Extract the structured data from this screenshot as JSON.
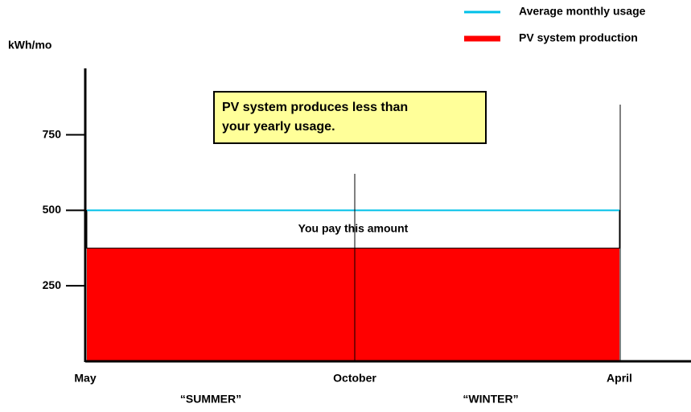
{
  "chart_data": {
    "type": "area",
    "y_label": "kWh/mo",
    "categories": [
      "May",
      "October",
      "April"
    ],
    "seasons": [
      "“SUMMER”",
      "“WINTER”"
    ],
    "series": [
      {
        "name": "Average monthly usage",
        "color": "#00c0e8",
        "values": [
          500,
          500,
          500
        ]
      },
      {
        "name": "PV system production",
        "color": "#ff0000",
        "values": [
          375,
          375,
          375
        ]
      }
    ],
    "ylim": [
      0,
      970
    ],
    "yticks": [
      250,
      500,
      750
    ],
    "note": [
      "PV system produces less than",
      "your yearly usage."
    ],
    "gap_label": "You pay this amount"
  }
}
